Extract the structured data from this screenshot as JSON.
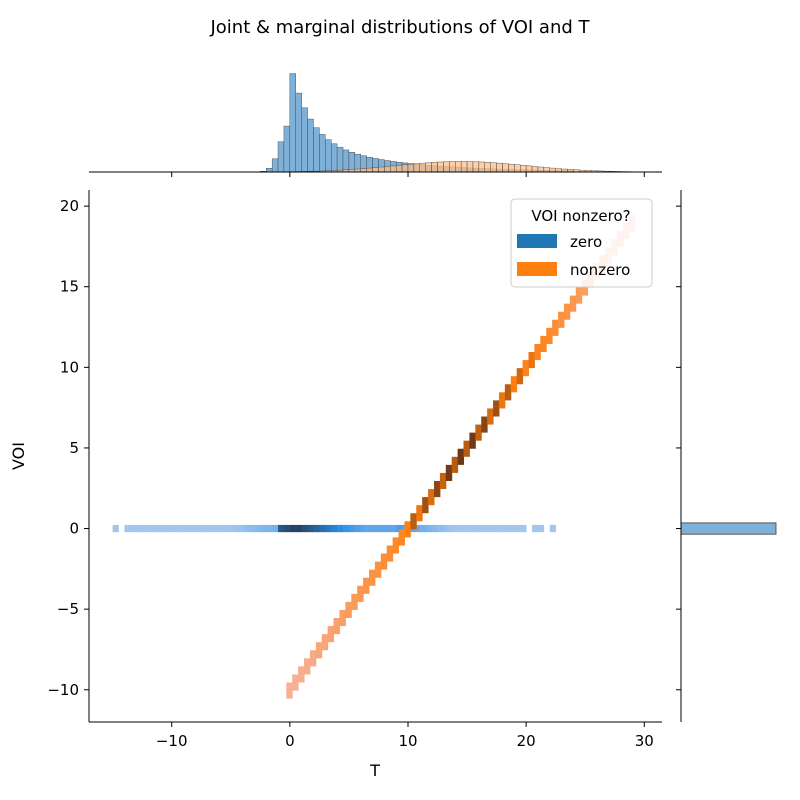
{
  "chart_data": {
    "type": "jointplot",
    "title": "Joint & marginal distributions of VOI and T",
    "xlabel": "T",
    "ylabel": "VOI",
    "xlim": [
      -17,
      31.5
    ],
    "ylim": [
      -12,
      21
    ],
    "xticks": [
      -10,
      0,
      10,
      20,
      30
    ],
    "yticks": [
      -10,
      -5,
      0,
      5,
      10,
      15,
      20
    ],
    "grid": false,
    "legend": {
      "title": "VOI nonzero?",
      "placement": "top-right",
      "entries": [
        {
          "label": "zero",
          "color": "#1f77b4"
        },
        {
          "label": "nonzero",
          "color": "#ff7f0e"
        }
      ]
    },
    "joint": {
      "zero": {
        "y": 0,
        "x_range": [
          -15,
          22.5
        ],
        "dense_range": [
          -1,
          9
        ],
        "mode": 0.5
      },
      "nonzero": {
        "slope": 1.0,
        "intercept": -10,
        "x_range": [
          -0.3,
          29
        ],
        "dense_range": [
          9.5,
          21
        ]
      }
    },
    "marginal_x": {
      "bin_width": 0.5,
      "zero": {
        "x_start": -4.5,
        "mode": 0.5,
        "peak": 1.0,
        "x_end": 24
      },
      "nonzero": {
        "center": 14.5,
        "spread": 5.5,
        "peak": 0.12,
        "x_start": 0,
        "x_end": 30
      }
    },
    "marginal_y": {
      "zero_bin": [
        -0.35,
        0.35
      ]
    },
    "colors": {
      "zero": "#1f77b4",
      "nonzero": "#ff7f0e",
      "hist_zero": "#7fb1d8",
      "hist_nonzero": "#ffbd85"
    }
  }
}
